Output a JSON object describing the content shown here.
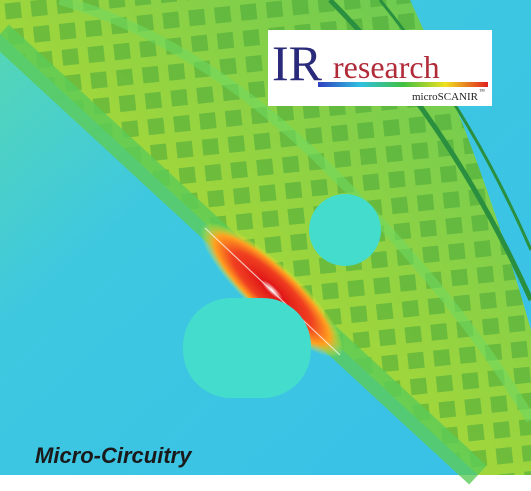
{
  "logo": {
    "mark": "IR",
    "name": "research",
    "product": "microSCANIR",
    "trademark": "™"
  },
  "caption": "Micro-Circuitry"
}
